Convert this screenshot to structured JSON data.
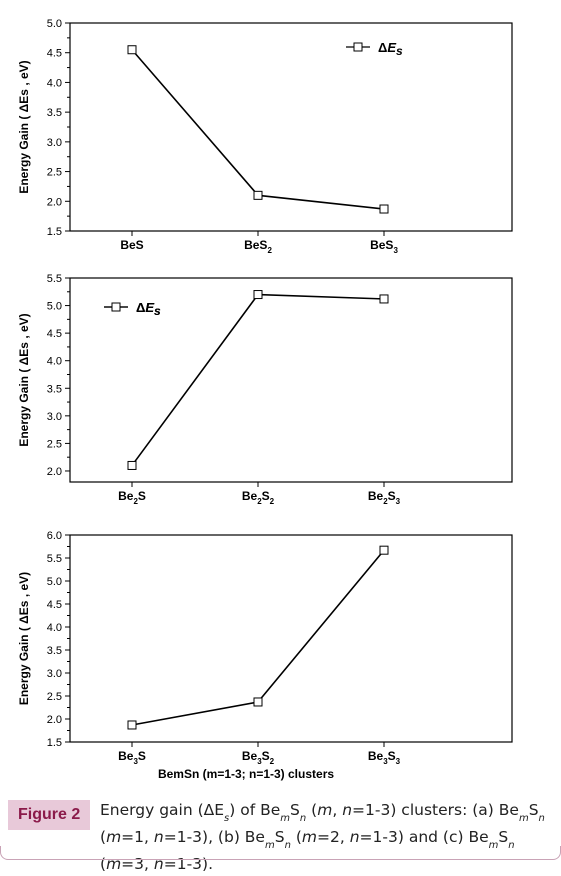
{
  "chart_data": [
    {
      "type": "line",
      "panel": "a",
      "ylabel": "Energy Gain ( ΔEs , eV)",
      "xlabel": "",
      "categories": [
        "BeS",
        "BeS2",
        "BeS3"
      ],
      "category_labels": [
        {
          "base": "BeS",
          "sub1": "",
          "mid": "",
          "sub2": ""
        },
        {
          "base": "BeS",
          "sub1": "",
          "mid": "",
          "sub2": "2"
        },
        {
          "base": "BeS",
          "sub1": "",
          "mid": "",
          "sub2": "3"
        }
      ],
      "series": [
        {
          "name": "ΔEs",
          "values": [
            4.55,
            2.1,
            1.87
          ]
        }
      ],
      "ylim": [
        1.5,
        5.0
      ],
      "yticks": [
        "1.5",
        "2.0",
        "2.5",
        "3.0",
        "3.5",
        "4.0",
        "4.5",
        "5.0"
      ],
      "legend": "top-right",
      "grid": false
    },
    {
      "type": "line",
      "panel": "b",
      "ylabel": "Energy Gain ( ΔEs , eV)",
      "xlabel": "",
      "categories": [
        "Be2S",
        "Be2S2",
        "Be2S3"
      ],
      "category_labels": [
        {
          "base": "Be",
          "sub1": "2",
          "mid": "S",
          "sub2": ""
        },
        {
          "base": "Be",
          "sub1": "2",
          "mid": "S",
          "sub2": "2"
        },
        {
          "base": "Be",
          "sub1": "2",
          "mid": "S",
          "sub2": "3"
        }
      ],
      "series": [
        {
          "name": "ΔEs",
          "values": [
            2.1,
            5.2,
            5.12
          ]
        }
      ],
      "ylim": [
        1.8,
        5.5
      ],
      "yticks": [
        "2.0",
        "2.5",
        "3.0",
        "3.5",
        "4.0",
        "4.5",
        "5.0",
        "5.5"
      ],
      "legend": "top-left",
      "grid": false
    },
    {
      "type": "line",
      "panel": "c",
      "ylabel": "Energy Gain ( ΔEs , eV)",
      "xlabel": "BemSn (m=1-3; n=1-3) clusters",
      "categories": [
        "Be3S",
        "Be3S2",
        "Be3S3"
      ],
      "category_labels": [
        {
          "base": "Be",
          "sub1": "3",
          "mid": "S",
          "sub2": ""
        },
        {
          "base": "Be",
          "sub1": "3",
          "mid": "S",
          "sub2": "2"
        },
        {
          "base": "Be",
          "sub1": "3",
          "mid": "S",
          "sub2": "3"
        }
      ],
      "series": [
        {
          "name": "ΔEs",
          "values": [
            1.87,
            2.37,
            5.67
          ]
        }
      ],
      "ylim": [
        1.5,
        6.0
      ],
      "yticks": [
        "1.5",
        "2.0",
        "2.5",
        "3.0",
        "3.5",
        "4.0",
        "4.5",
        "5.0",
        "5.5",
        "6.0"
      ],
      "legend": "top-left",
      "grid": false
    }
  ],
  "caption": {
    "figure_label": "Figure 2",
    "text": "Energy gain (ΔEs) of BemSn (m, n=1-3) clusters: (a) BemSn (m=1, n=1-3), (b) BemSn (m=2, n=1-3) and (c) BemSn (m=3, n=1-3)."
  },
  "colors": {
    "line": "#000000",
    "marker_fill": "#ffffff",
    "figure_label_bg": "#e8c9d9",
    "figure_label_text": "#8b1a4a"
  }
}
